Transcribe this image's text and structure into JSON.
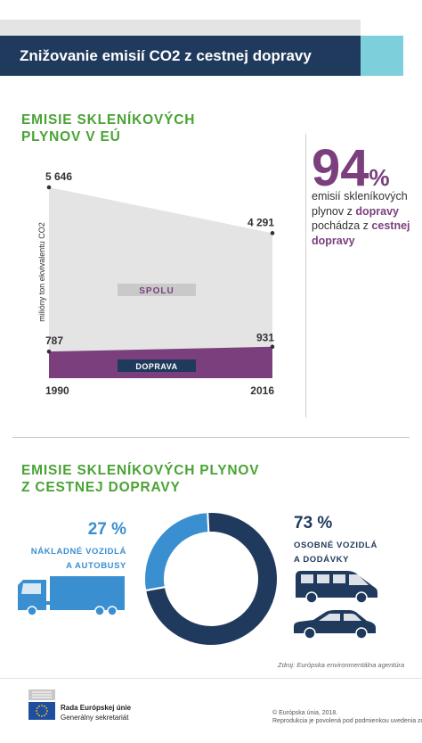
{
  "header": {
    "title": "Znižovanie emisií CO2 z cestnej dopravy"
  },
  "section1": {
    "title_line1": "EMISIE SKLENÍKOVÝCH",
    "title_line2": "PLYNOV V EÚ"
  },
  "highlight": {
    "value": "94",
    "unit": "%",
    "line1": "emisií skleníkových",
    "line2_pre": "plynov z ",
    "line2_bold": "dopravy",
    "line3_pre": "pochádza z ",
    "line3_bold": "cestnej",
    "line4_bold": "dopravy"
  },
  "section2": {
    "title_line1": "EMISIE SKLENÍKOVÝCH PLYNOV",
    "title_line2": "Z CESTNEJ DOPRAVY"
  },
  "freight": {
    "percent": "27 %",
    "line1": "NÁKLADNÉ VOZIDLÁ",
    "line2": "A AUTOBUSY"
  },
  "passenger": {
    "percent": "73 %",
    "line1": "OSOBNÉ VOZIDLÁ",
    "line2": "A DODÁVKY"
  },
  "source": "Zdroj: Európska environmentálna agentúra",
  "footer": {
    "org1": "Rada Európskej únie",
    "org2": "Generálny sekretariát",
    "copyright": "© Európska únia, 2018.",
    "repro": "Reprodukcia je povolená pod podmienkou uvedenia zdroja"
  },
  "colors": {
    "navy": "#1f3a5c",
    "teal": "#7dd0db",
    "purple": "#7b3f7e",
    "green": "#4aa335",
    "blue": "#3a8fd1",
    "grey": "#e4e4e4"
  },
  "chart_data": [
    {
      "type": "area",
      "ylabel": "milióny ton ekvivalentu CO2",
      "x": [
        "1990",
        "2016"
      ],
      "series": [
        {
          "name": "SPOLU",
          "values": [
            5646,
            4291
          ],
          "labels": [
            "5 646",
            "4 291"
          ],
          "color": "#e4e4e4"
        },
        {
          "name": "DOPRAVA",
          "values": [
            787,
            931
          ],
          "labels": [
            "787",
            "931"
          ],
          "color": "#7b3f7e"
        }
      ]
    },
    {
      "type": "pie",
      "slices": [
        {
          "label": "NÁKLADNÉ VOZIDLÁ A AUTOBUSY",
          "value": 27,
          "color": "#3a8fd1"
        },
        {
          "label": "OSOBNÉ VOZIDLÁ A DODÁVKY",
          "value": 73,
          "color": "#1f3a5c"
        }
      ]
    }
  ]
}
